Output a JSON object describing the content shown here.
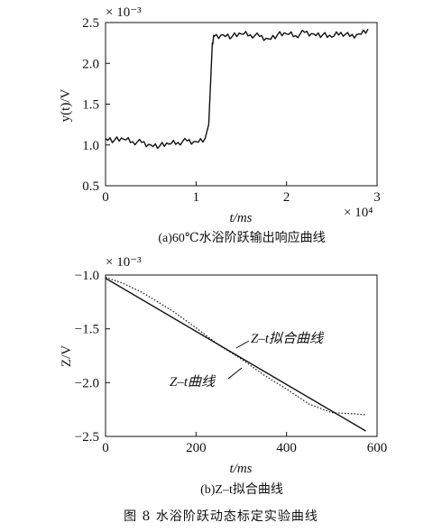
{
  "figure_caption": "图 8    水浴阶跃动态标定实验曲线",
  "chart_data": [
    {
      "type": "line",
      "caption": "(a)60℃水浴阶跃输出响应曲线",
      "xlabel": "t/ms",
      "ylabel": "y(t)/V",
      "x_multiplier": "× 10⁴",
      "y_multiplier": "× 10⁻³",
      "xlim": [
        0,
        30000
      ],
      "ylim": [
        0.5,
        2.5
      ],
      "x_ticks": [
        0,
        10000,
        20000,
        30000
      ],
      "x_tick_labels": [
        "0",
        "1",
        "2",
        "3"
      ],
      "y_ticks": [
        0.5,
        1.0,
        1.5,
        2.0,
        2.5
      ],
      "y_tick_labels": [
        "0.5",
        "1.0",
        "1.5",
        "2.0",
        "2.5"
      ],
      "series": [
        {
          "x": [
            0,
            1000,
            2000,
            3000,
            4000,
            5000,
            6000,
            7000,
            8000,
            9000,
            10000,
            11000,
            11400,
            11800,
            12000,
            13000,
            14000,
            15000,
            16000,
            17000,
            18000,
            19000,
            20000,
            21000,
            22000,
            23000,
            24000,
            25000,
            26000,
            27000,
            28000,
            29000
          ],
          "y": [
            1.08,
            1.06,
            1.07,
            1.04,
            1.03,
            1.0,
            0.99,
            1.01,
            1.03,
            1.05,
            1.04,
            1.08,
            1.25,
            2.25,
            2.33,
            2.35,
            2.33,
            2.36,
            2.35,
            2.33,
            2.3,
            2.35,
            2.36,
            2.34,
            2.38,
            2.36,
            2.35,
            2.32,
            2.38,
            2.33,
            2.36,
            2.42
          ]
        }
      ]
    },
    {
      "type": "line",
      "caption": "(b)Z–t拟合曲线",
      "xlabel": "t/ms",
      "ylabel": "Z/V",
      "y_multiplier": "× 10⁻³",
      "xlim": [
        0,
        600
      ],
      "ylim": [
        -2.5,
        -1.0
      ],
      "x_ticks": [
        0,
        200,
        400,
        600
      ],
      "x_tick_labels": [
        "0",
        "200",
        "400",
        "600"
      ],
      "y_ticks": [
        -2.5,
        -2.0,
        -1.5,
        -1.0
      ],
      "y_tick_labels": [
        "−2.5",
        "−2.0",
        "−1.5",
        "−1.0"
      ],
      "annotations": [
        "Z–t拟合曲线",
        "Z–t曲线"
      ],
      "series": [
        {
          "name": "Z–t拟合曲线",
          "style": "solid",
          "x": [
            0,
            575
          ],
          "y": [
            -1.03,
            -2.45
          ]
        },
        {
          "name": "Z–t曲线",
          "style": "dotted",
          "x": [
            0,
            20,
            40,
            60,
            80,
            100,
            150,
            200,
            250,
            300,
            350,
            400,
            450,
            500,
            550,
            575
          ],
          "y": [
            -1.02,
            -1.05,
            -1.08,
            -1.12,
            -1.16,
            -1.21,
            -1.34,
            -1.49,
            -1.65,
            -1.78,
            -1.93,
            -2.06,
            -2.2,
            -2.28,
            -2.29,
            -2.3
          ]
        }
      ]
    }
  ]
}
